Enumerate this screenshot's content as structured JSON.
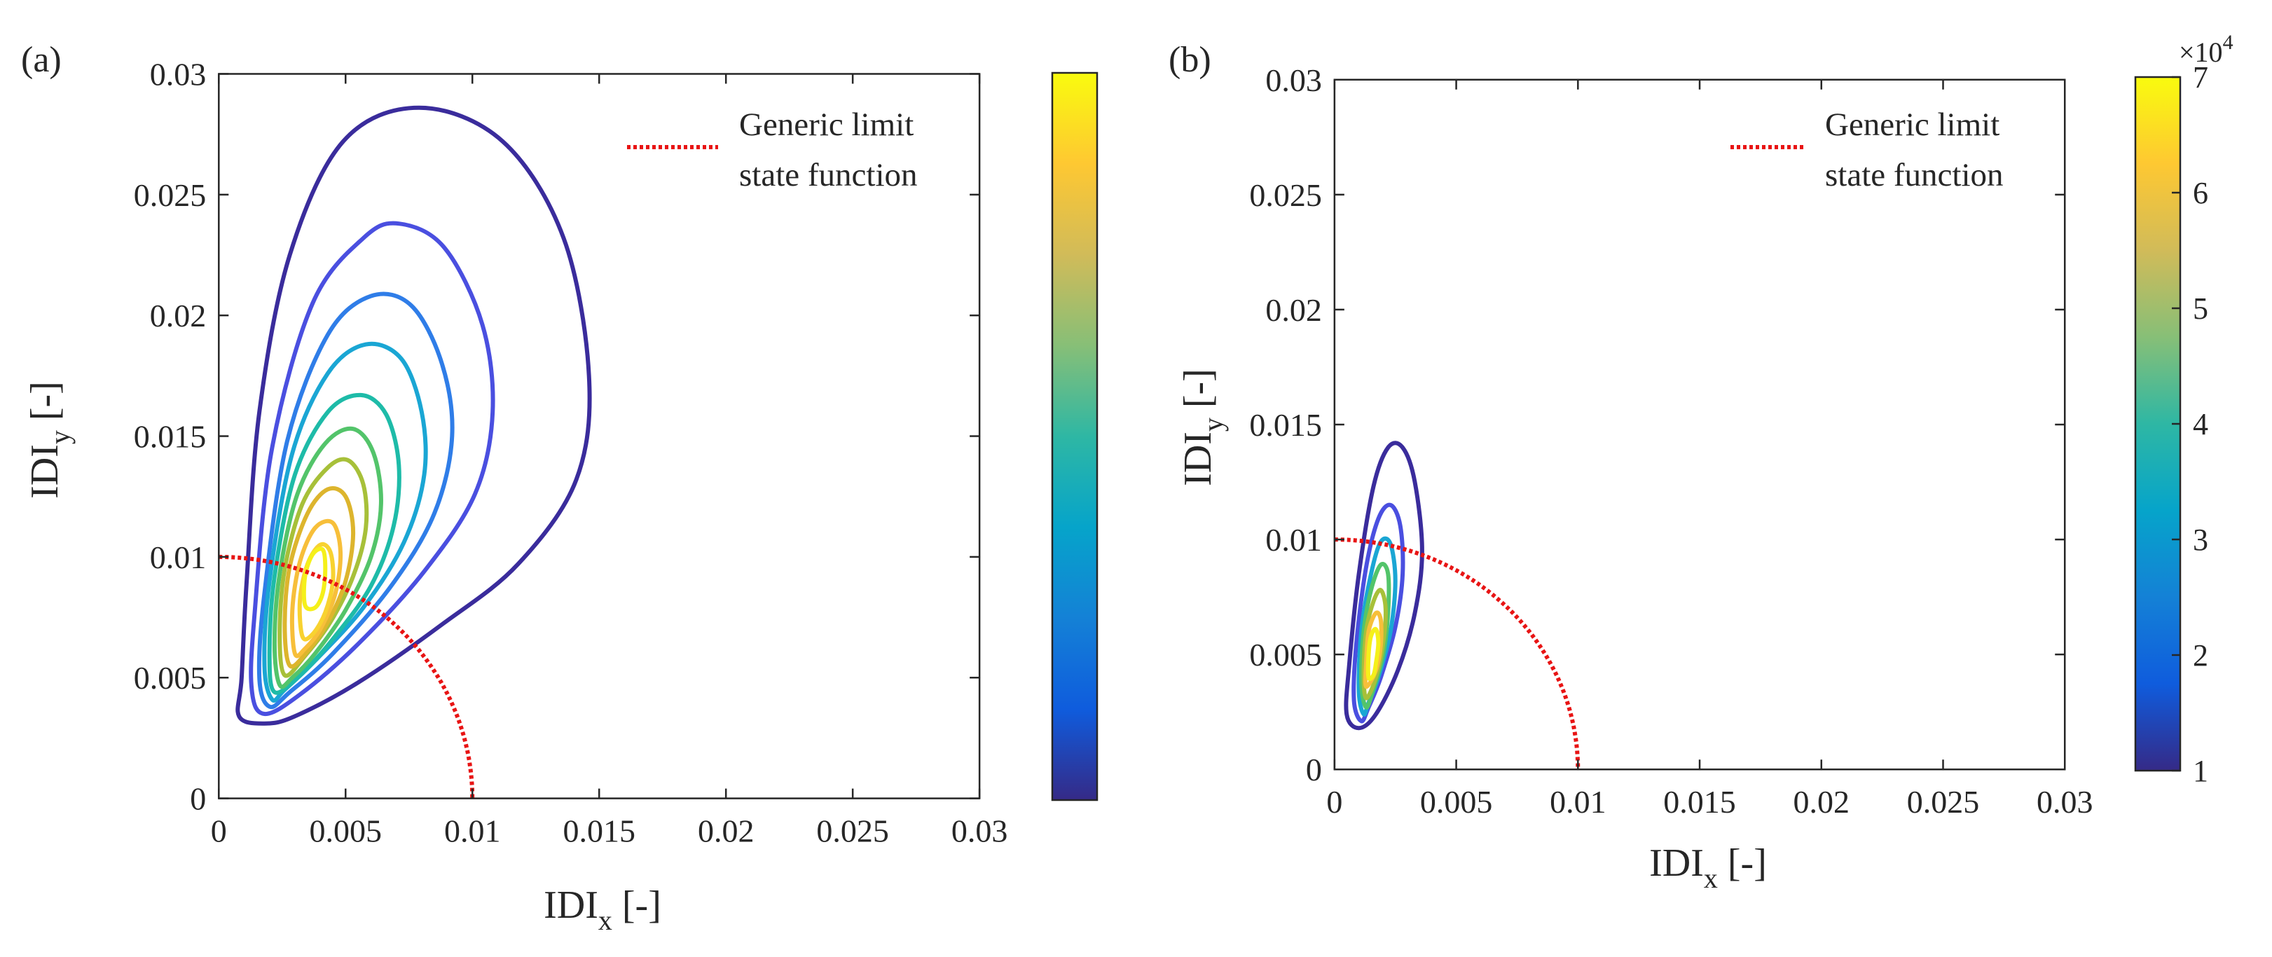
{
  "chart_data": [
    {
      "type": "contour",
      "panel_label": "(a)",
      "xlabel_main": "IDI",
      "xlabel_sub": "x",
      "xlabel_unit": " [-]",
      "ylabel_main": "IDI",
      "ylabel_sub": "y",
      "ylabel_unit": " [-]",
      "xlim": [
        0,
        0.03
      ],
      "ylim": [
        0,
        0.03
      ],
      "xticks": [
        "0",
        "0.005",
        "0.01",
        "0.015",
        "0.02",
        "0.025",
        "0.03"
      ],
      "yticks": [
        "0",
        "0.005",
        "0.01",
        "0.015",
        "0.02",
        "0.025",
        "0.03"
      ],
      "legend": [
        "Generic limit",
        "state function"
      ],
      "legend_color": "#e81414",
      "limit_state_radius": 0.01,
      "contours": [
        {
          "level": 1,
          "color": "#3a2c9c",
          "points": [
            [
              0.0018,
              0.0031
            ],
            [
              0.0008,
              0.0034
            ],
            [
              0.0009,
              0.005
            ],
            [
              0.0011,
              0.009
            ],
            [
              0.0016,
              0.016
            ],
            [
              0.0028,
              0.0225
            ],
            [
              0.0049,
              0.0272
            ],
            [
              0.0079,
              0.0286
            ],
            [
              0.0112,
              0.0272
            ],
            [
              0.0136,
              0.0232
            ],
            [
              0.0146,
              0.0175
            ],
            [
              0.0141,
              0.0132
            ],
            [
              0.0118,
              0.0097
            ],
            [
              0.0088,
              0.0072
            ],
            [
              0.0055,
              0.0048
            ],
            [
              0.003,
              0.0034
            ]
          ]
        },
        {
          "level": 1.6,
          "color": "#4a4fe0",
          "points": [
            [
              0.0018,
              0.0035
            ],
            [
              0.0013,
              0.0045
            ],
            [
              0.0014,
              0.0075
            ],
            [
              0.0021,
              0.0145
            ],
            [
              0.0037,
              0.0205
            ],
            [
              0.0057,
              0.0232
            ],
            [
              0.0071,
              0.0238
            ],
            [
              0.0089,
              0.0228
            ],
            [
              0.0104,
              0.0196
            ],
            [
              0.0108,
              0.016
            ],
            [
              0.0101,
              0.0126
            ],
            [
              0.0081,
              0.0094
            ],
            [
              0.0055,
              0.0064
            ],
            [
              0.0032,
              0.0043
            ]
          ]
        },
        {
          "level": 2.2,
          "color": "#2f7de8",
          "points": [
            [
              0.002,
              0.0038
            ],
            [
              0.0016,
              0.005
            ],
            [
              0.0018,
              0.0085
            ],
            [
              0.0027,
              0.0148
            ],
            [
              0.0043,
              0.0192
            ],
            [
              0.006,
              0.0208
            ],
            [
              0.0076,
              0.0204
            ],
            [
              0.0088,
              0.018
            ],
            [
              0.0092,
              0.015
            ],
            [
              0.0085,
              0.0118
            ],
            [
              0.0068,
              0.0088
            ],
            [
              0.0045,
              0.006
            ],
            [
              0.0028,
              0.0044
            ]
          ]
        },
        {
          "level": 2.8,
          "color": "#1aa6d4",
          "points": [
            [
              0.0021,
              0.0041
            ],
            [
              0.0018,
              0.0055
            ],
            [
              0.002,
              0.009
            ],
            [
              0.0029,
              0.0143
            ],
            [
              0.0043,
              0.0176
            ],
            [
              0.0058,
              0.0188
            ],
            [
              0.0072,
              0.0182
            ],
            [
              0.008,
              0.016
            ],
            [
              0.0081,
              0.0134
            ],
            [
              0.0073,
              0.0106
            ],
            [
              0.0057,
              0.0079
            ],
            [
              0.0038,
              0.0057
            ],
            [
              0.0026,
              0.0045
            ]
          ]
        },
        {
          "level": 3.4,
          "color": "#1ebba8",
          "points": [
            [
              0.0022,
              0.0044
            ],
            [
              0.002,
              0.006
            ],
            [
              0.0022,
              0.0092
            ],
            [
              0.003,
              0.0134
            ],
            [
              0.0043,
              0.016
            ],
            [
              0.0056,
              0.0167
            ],
            [
              0.0066,
              0.0159
            ],
            [
              0.0071,
              0.0138
            ],
            [
              0.0069,
              0.0113
            ],
            [
              0.006,
              0.0088
            ],
            [
              0.0045,
              0.0066
            ],
            [
              0.0032,
              0.0051
            ]
          ]
        },
        {
          "level": 4.0,
          "color": "#53c46a",
          "points": [
            [
              0.0024,
              0.0047
            ],
            [
              0.0022,
              0.0064
            ],
            [
              0.0024,
              0.0093
            ],
            [
              0.0031,
              0.0126
            ],
            [
              0.0042,
              0.0147
            ],
            [
              0.0053,
              0.0153
            ],
            [
              0.0061,
              0.0143
            ],
            [
              0.0064,
              0.0122
            ],
            [
              0.006,
              0.01
            ],
            [
              0.005,
              0.0078
            ],
            [
              0.0038,
              0.006
            ],
            [
              0.0029,
              0.005
            ]
          ]
        },
        {
          "level": 4.6,
          "color": "#a7c039",
          "points": [
            [
              0.0026,
              0.0051
            ],
            [
              0.0024,
              0.0068
            ],
            [
              0.0026,
              0.0095
            ],
            [
              0.0033,
              0.0122
            ],
            [
              0.0043,
              0.0137
            ],
            [
              0.0051,
              0.014
            ],
            [
              0.0057,
              0.013
            ],
            [
              0.0058,
              0.0112
            ],
            [
              0.0053,
              0.0092
            ],
            [
              0.0044,
              0.0073
            ],
            [
              0.0034,
              0.0059
            ]
          ]
        },
        {
          "level": 5.2,
          "color": "#ddb52d",
          "points": [
            [
              0.0028,
              0.0055
            ],
            [
              0.0026,
              0.0072
            ],
            [
              0.0028,
              0.0096
            ],
            [
              0.0035,
              0.0118
            ],
            [
              0.0043,
              0.0128
            ],
            [
              0.005,
              0.0125
            ],
            [
              0.0053,
              0.011
            ],
            [
              0.005,
              0.009
            ],
            [
              0.0043,
              0.0073
            ],
            [
              0.0035,
              0.0061
            ]
          ]
        },
        {
          "level": 5.8,
          "color": "#f7bf3a",
          "points": [
            [
              0.003,
              0.006
            ],
            [
              0.0029,
              0.0078
            ],
            [
              0.0032,
              0.0098
            ],
            [
              0.0038,
              0.0112
            ],
            [
              0.0045,
              0.0114
            ],
            [
              0.0048,
              0.0102
            ],
            [
              0.0046,
              0.0085
            ],
            [
              0.004,
              0.007
            ],
            [
              0.0034,
              0.0062
            ]
          ]
        },
        {
          "level": 6.4,
          "color": "#f8d230",
          "points": [
            [
              0.0033,
              0.0067
            ],
            [
              0.0032,
              0.0082
            ],
            [
              0.0035,
              0.0097
            ],
            [
              0.004,
              0.0105
            ],
            [
              0.0044,
              0.0102
            ],
            [
              0.0045,
              0.009
            ],
            [
              0.0042,
              0.0077
            ],
            [
              0.0037,
              0.0068
            ]
          ]
        },
        {
          "level": 7.0,
          "color": "#f5f01a",
          "points": [
            [
              0.0034,
              0.008
            ],
            [
              0.0034,
              0.0092
            ],
            [
              0.0037,
              0.0101
            ],
            [
              0.0041,
              0.0103
            ],
            [
              0.0042,
              0.0095
            ],
            [
              0.0041,
              0.0085
            ],
            [
              0.0038,
              0.0079
            ]
          ]
        }
      ],
      "colorbar": {
        "cmin": 1,
        "cmax": 7,
        "ticks": [],
        "exponent_label": "",
        "colors": [
          "#352a87",
          "#0f5cdd",
          "#1481d6",
          "#06a4ca",
          "#2eb7a4",
          "#87bf77",
          "#d1bb59",
          "#fec832",
          "#f9fb0e"
        ]
      }
    },
    {
      "type": "contour",
      "panel_label": "(b)",
      "xlabel_main": "IDI",
      "xlabel_sub": "x",
      "xlabel_unit": " [-]",
      "ylabel_main": "IDI",
      "ylabel_sub": "y",
      "ylabel_unit": " [-]",
      "xlim": [
        0,
        0.03
      ],
      "ylim": [
        0,
        0.03
      ],
      "xticks": [
        "0",
        "0.005",
        "0.01",
        "0.015",
        "0.02",
        "0.025",
        "0.03"
      ],
      "yticks": [
        "0",
        "0.005",
        "0.01",
        "0.015",
        "0.02",
        "0.025",
        "0.03"
      ],
      "legend": [
        "Generic limit",
        "state function"
      ],
      "legend_color": "#e81414",
      "limit_state_radius": 0.01,
      "contours": [
        {
          "level": 1,
          "color": "#3a2c9c",
          "points": [
            [
              0.001,
              0.0018
            ],
            [
              0.0005,
              0.0024
            ],
            [
              0.0006,
              0.0045
            ],
            [
              0.001,
              0.0085
            ],
            [
              0.0016,
              0.0123
            ],
            [
              0.0022,
              0.014
            ],
            [
              0.0028,
              0.014
            ],
            [
              0.0033,
              0.0125
            ],
            [
              0.0036,
              0.0095
            ],
            [
              0.0033,
              0.0068
            ],
            [
              0.0026,
              0.0043
            ],
            [
              0.0017,
              0.0024
            ]
          ]
        },
        {
          "level": 2,
          "color": "#4a4fe0",
          "points": [
            [
              0.0011,
              0.0021
            ],
            [
              0.0008,
              0.003
            ],
            [
              0.0009,
              0.0055
            ],
            [
              0.0013,
              0.0088
            ],
            [
              0.0018,
              0.0109
            ],
            [
              0.0023,
              0.0115
            ],
            [
              0.0027,
              0.0106
            ],
            [
              0.0028,
              0.0085
            ],
            [
              0.0025,
              0.0062
            ],
            [
              0.0019,
              0.004
            ],
            [
              0.0014,
              0.0027
            ]
          ]
        },
        {
          "level": 3,
          "color": "#1aa6d4",
          "points": [
            [
              0.0012,
              0.0024
            ],
            [
              0.001,
              0.0034
            ],
            [
              0.0011,
              0.006
            ],
            [
              0.0015,
              0.0085
            ],
            [
              0.0019,
              0.0099
            ],
            [
              0.0023,
              0.0098
            ],
            [
              0.0025,
              0.0082
            ],
            [
              0.0023,
              0.006
            ],
            [
              0.0018,
              0.004
            ],
            [
              0.0014,
              0.0029
            ]
          ]
        },
        {
          "level": 4,
          "color": "#53c46a",
          "points": [
            [
              0.0013,
              0.0027
            ],
            [
              0.0011,
              0.0038
            ],
            [
              0.0012,
              0.006
            ],
            [
              0.0015,
              0.0078
            ],
            [
              0.0019,
              0.0089
            ],
            [
              0.0022,
              0.0085
            ],
            [
              0.0022,
              0.0068
            ],
            [
              0.002,
              0.005
            ],
            [
              0.0016,
              0.0035
            ]
          ]
        },
        {
          "level": 5,
          "color": "#a7c039",
          "points": [
            [
              0.0013,
              0.0031
            ],
            [
              0.0012,
              0.0042
            ],
            [
              0.0013,
              0.006
            ],
            [
              0.0016,
              0.0073
            ],
            [
              0.0019,
              0.0078
            ],
            [
              0.0021,
              0.007
            ],
            [
              0.002,
              0.0055
            ],
            [
              0.0017,
              0.004
            ]
          ]
        },
        {
          "level": 6,
          "color": "#f7bf3a",
          "points": [
            [
              0.0013,
              0.0036
            ],
            [
              0.0013,
              0.0046
            ],
            [
              0.0014,
              0.006
            ],
            [
              0.0017,
              0.0068
            ],
            [
              0.0019,
              0.0065
            ],
            [
              0.0019,
              0.0054
            ],
            [
              0.0017,
              0.0043
            ]
          ]
        },
        {
          "level": 7,
          "color": "#f5f01a",
          "points": [
            [
              0.0014,
              0.004
            ],
            [
              0.0014,
              0.005
            ],
            [
              0.0015,
              0.0058
            ],
            [
              0.0017,
              0.0061
            ],
            [
              0.0018,
              0.0055
            ],
            [
              0.0017,
              0.0046
            ],
            [
              0.0016,
              0.0041
            ]
          ]
        }
      ],
      "colorbar": {
        "cmin": 1,
        "cmax": 7,
        "ticks": [
          "1",
          "2",
          "3",
          "4",
          "5",
          "6",
          "7"
        ],
        "exponent_label": "×10",
        "exponent_power": "4",
        "colors": [
          "#352a87",
          "#0f5cdd",
          "#1481d6",
          "#06a4ca",
          "#2eb7a4",
          "#87bf77",
          "#d1bb59",
          "#fec832",
          "#f9fb0e"
        ]
      }
    }
  ]
}
